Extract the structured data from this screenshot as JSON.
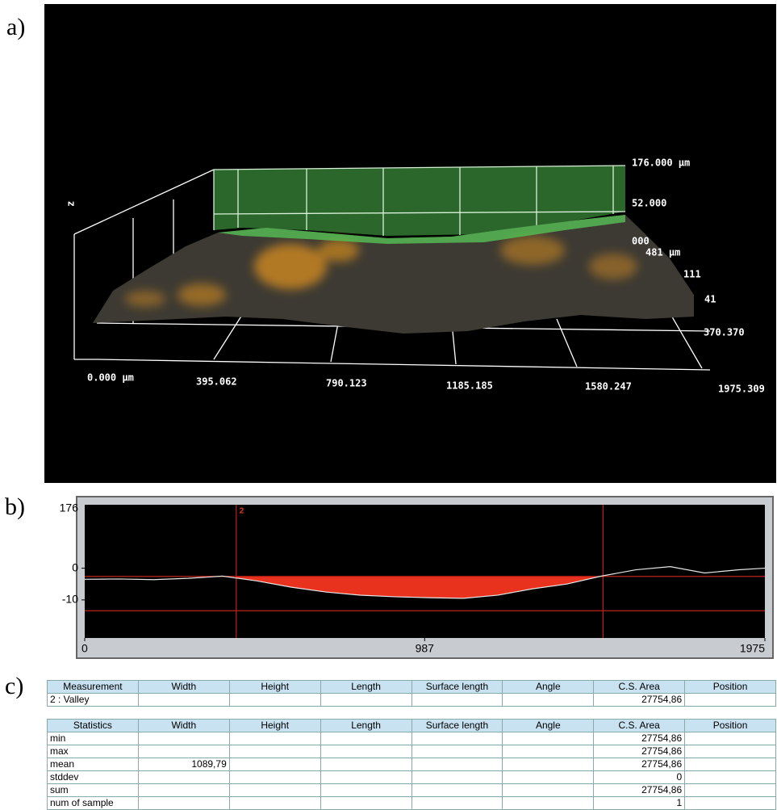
{
  "panel_labels": [
    "a)",
    "b)",
    "c)"
  ],
  "surface": {
    "axis_labels": [
      "176.000 µm",
      "52.000",
      "000",
      "481 µm",
      "111",
      "41",
      "370.370",
      "z",
      "0.000 µm",
      "395.062",
      "790.123",
      "1185.185",
      "1580.247",
      "1975.309"
    ]
  },
  "chart_data": {
    "type": "line",
    "x": [
      0,
      100,
      200,
      300,
      400,
      500,
      600,
      700,
      800,
      900,
      1000,
      1100,
      1200,
      1300,
      1400,
      1500,
      1600,
      1700,
      1800,
      1900,
      1975
    ],
    "series": [
      {
        "color": "#e6e6e6",
        "values": [
          -3.5,
          -3.4,
          -3.6,
          -3.2,
          -2.5,
          -4,
          -6,
          -7.5,
          -8.5,
          -9,
          -9.3,
          -9.5,
          -8.5,
          -6.5,
          -5,
          -2.5,
          -0.5,
          0.5,
          -1.5,
          -0.5,
          0
        ]
      }
    ],
    "xlim": [
      0,
      1975
    ],
    "xticks": [
      0,
      987,
      1975
    ],
    "ylim": [
      -22,
      20
    ],
    "yticks": [
      0,
      -10
    ],
    "y_top_label": "176",
    "cursors": [
      440,
      1505
    ],
    "cursor_label": "2",
    "reference_lines": [
      -2.6,
      -13.4
    ],
    "fill_color": "#e8321e",
    "line_color": "#c0201a"
  },
  "tables": [
    {
      "header": [
        "Measurement",
        "Width",
        "Height",
        "Length",
        "Surface length",
        "Angle",
        "C.S. Area",
        "Position"
      ],
      "rows": [
        [
          "2 : Valley",
          null,
          null,
          null,
          null,
          null,
          "27754,86",
          null
        ]
      ]
    },
    {
      "header": [
        "Statistics",
        "Width",
        "Height",
        "Length",
        "Surface length",
        "Angle",
        "C.S. Area",
        "Position"
      ],
      "rows": [
        [
          "min",
          null,
          null,
          null,
          null,
          null,
          "27754,86",
          null
        ],
        [
          "max",
          null,
          null,
          null,
          null,
          null,
          "27754,86",
          null
        ],
        [
          "mean",
          "1089,79",
          null,
          null,
          null,
          null,
          "27754,86",
          null
        ],
        [
          "stddev",
          null,
          null,
          null,
          null,
          null,
          "0",
          null
        ],
        [
          "sum",
          null,
          null,
          null,
          null,
          null,
          "27754,86",
          null
        ],
        [
          "num of sample",
          null,
          null,
          null,
          null,
          null,
          "1",
          null
        ]
      ]
    }
  ]
}
